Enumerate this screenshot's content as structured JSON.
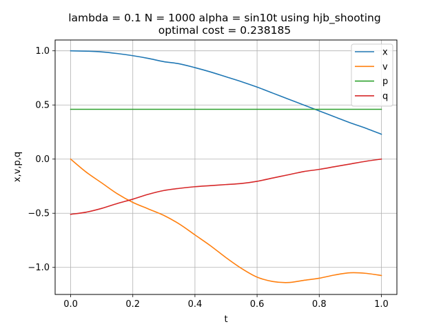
{
  "chart_data": {
    "type": "line",
    "title": "lambda = 0.1 N = 1000 alpha = sin10t using hjb_shooting",
    "subtitle": "optimal cost = 0.238185",
    "xlabel": "t",
    "ylabel": "x,v,p,q",
    "xlim": [
      -0.05,
      1.05
    ],
    "ylim": [
      -1.25,
      1.1
    ],
    "x_ticks": [
      0.0,
      0.2,
      0.4,
      0.6,
      0.8,
      1.0
    ],
    "x_tick_labels": [
      "0.0",
      "0.2",
      "0.4",
      "0.6",
      "0.8",
      "1.0"
    ],
    "y_ticks": [
      1.0,
      0.5,
      0.0,
      -0.5,
      -1.0
    ],
    "y_tick_labels": [
      "1.0",
      "0.5",
      "0.0",
      "−0.5",
      "−1.0"
    ],
    "grid": true,
    "legend_position": "top-right",
    "x": [
      0.0,
      0.05,
      0.1,
      0.15,
      0.2,
      0.25,
      0.3,
      0.35,
      0.4,
      0.45,
      0.5,
      0.55,
      0.6,
      0.65,
      0.7,
      0.75,
      0.8,
      0.85,
      0.9,
      0.95,
      1.0
    ],
    "series": [
      {
        "name": "x",
        "color": "#1f77b4",
        "values": [
          1.0,
          0.997,
          0.99,
          0.975,
          0.955,
          0.93,
          0.9,
          0.88,
          0.845,
          0.805,
          0.76,
          0.715,
          0.665,
          0.61,
          0.555,
          0.5,
          0.445,
          0.39,
          0.335,
          0.285,
          0.23
        ]
      },
      {
        "name": "v",
        "color": "#ff7f0e",
        "values": [
          0.0,
          -0.12,
          -0.22,
          -0.32,
          -0.4,
          -0.46,
          -0.52,
          -0.6,
          -0.7,
          -0.8,
          -0.91,
          -1.01,
          -1.09,
          -1.13,
          -1.14,
          -1.12,
          -1.1,
          -1.07,
          -1.05,
          -1.055,
          -1.075
        ]
      },
      {
        "name": "p",
        "color": "#2ca02c",
        "values": [
          0.46,
          0.46,
          0.46,
          0.46,
          0.46,
          0.46,
          0.46,
          0.46,
          0.46,
          0.46,
          0.46,
          0.46,
          0.46,
          0.46,
          0.46,
          0.46,
          0.46,
          0.46,
          0.46,
          0.46,
          0.46
        ]
      },
      {
        "name": "q",
        "color": "#d62728",
        "values": [
          -0.51,
          -0.49,
          -0.455,
          -0.41,
          -0.37,
          -0.325,
          -0.29,
          -0.27,
          -0.255,
          -0.245,
          -0.235,
          -0.225,
          -0.205,
          -0.175,
          -0.145,
          -0.115,
          -0.095,
          -0.07,
          -0.045,
          -0.02,
          0.0
        ]
      }
    ]
  }
}
